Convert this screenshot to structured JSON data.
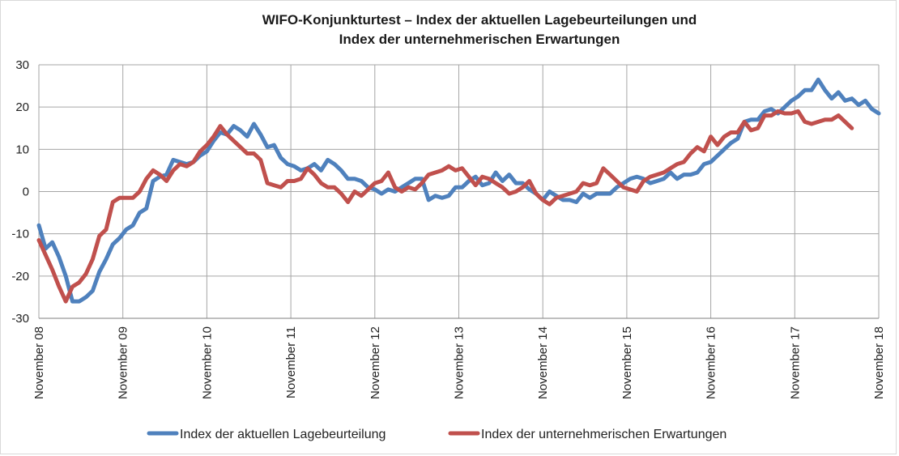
{
  "chart_data": {
    "type": "line",
    "title_line1": "WIFO-Konjunkturtest – Index der aktuellen Lagebeurteilungen und",
    "title_line2": "Index der unternehmerischen Erwartungen",
    "xlabel": "",
    "ylabel": "",
    "ylim": [
      -30,
      30
    ],
    "yticks": [
      -30,
      -20,
      -10,
      0,
      10,
      20,
      30
    ],
    "x_tick_labels": [
      "November 08",
      "November 09",
      "November 10",
      "November 11",
      "November 12",
      "November 13",
      "November 14",
      "November 15",
      "November 16",
      "November 17",
      "November 18"
    ],
    "grid": "vertical and horizontal",
    "legend_position": "bottom",
    "colors": {
      "lage": "#4f81bd",
      "erwartungen": "#c0504d"
    },
    "series": [
      {
        "name": "Index der aktuellen Lagebeurteilung",
        "key": "lage",
        "values": [
          -8,
          -13.5,
          -12,
          -15.5,
          -20,
          -26,
          -26,
          -25,
          -23.5,
          -19,
          -16,
          -12.5,
          -11,
          -9,
          -8,
          -5,
          -4,
          2.5,
          3.5,
          4,
          7.5,
          7,
          6.5,
          7,
          8.5,
          9.5,
          12,
          14,
          13.5,
          15.5,
          14.5,
          13,
          16,
          13.5,
          10.5,
          11,
          8,
          6.5,
          6,
          5,
          5.5,
          6.5,
          5,
          7.5,
          6.5,
          5,
          3,
          3,
          2.5,
          1,
          0.5,
          -0.5,
          0.5,
          0,
          1,
          2,
          3,
          3,
          -2,
          -1,
          -1.5,
          -1,
          1,
          1,
          2.5,
          3.5,
          1.5,
          2,
          4.5,
          2.5,
          4,
          2,
          2,
          0.5,
          -0.5,
          -2,
          0,
          -1,
          -2,
          -2,
          -2.5,
          -0.5,
          -1.5,
          -0.5,
          -0.5,
          -0.5,
          1,
          2,
          3,
          3.5,
          3,
          2,
          2.5,
          3,
          4.5,
          3,
          4,
          4,
          4.5,
          6.5,
          7,
          8.5,
          10,
          11.5,
          12.5,
          16.5,
          17,
          17,
          19,
          19.5,
          18.5,
          20,
          21.5,
          22.5,
          24,
          24,
          26.5,
          24,
          22,
          23.5,
          21.5,
          22,
          20.5,
          21.5,
          19.5,
          18.5
        ]
      },
      {
        "name": "Index der unternehmerischen Erwartungen",
        "key": "erwartungen",
        "values": [
          -11.5,
          -15,
          -18.5,
          -22.5,
          -26,
          -22.5,
          -21.5,
          -19.5,
          -16,
          -10.5,
          -9,
          -2.5,
          -1.5,
          -1.5,
          -1.5,
          0,
          3,
          5,
          4,
          2.5,
          5,
          6.5,
          6,
          7,
          9.5,
          11,
          13,
          15.5,
          13.5,
          12,
          10.5,
          9,
          9,
          7.5,
          2,
          1.5,
          1,
          2.5,
          2.5,
          3,
          5.5,
          4,
          2,
          1,
          1,
          -0.5,
          -2.5,
          0,
          -1,
          0.5,
          2,
          2.5,
          4.5,
          1,
          0,
          1,
          0.5,
          2,
          4,
          4.5,
          5,
          6,
          5,
          5.5,
          3.5,
          1.5,
          3.5,
          3,
          2,
          1,
          -0.5,
          0,
          1,
          2.5,
          -0.5,
          -2,
          -3,
          -1.5,
          -1,
          -0.5,
          0,
          2,
          1.5,
          2,
          5.5,
          4,
          2.5,
          1,
          0.5,
          0,
          2.5,
          3.5,
          4,
          4.5,
          5.5,
          6.5,
          7,
          9,
          10.5,
          9.5,
          13,
          11,
          13,
          14,
          14,
          16.5,
          14.5,
          15,
          18,
          18,
          19,
          18.5,
          18.5,
          19,
          16.5,
          16,
          16.5,
          17,
          17,
          18,
          16.5,
          15
        ]
      }
    ]
  },
  "legend": {
    "items": [
      {
        "label": "Index der aktuellen Lagebeurteilung"
      },
      {
        "label": "Index der unternehmerischen Erwartungen"
      }
    ]
  }
}
